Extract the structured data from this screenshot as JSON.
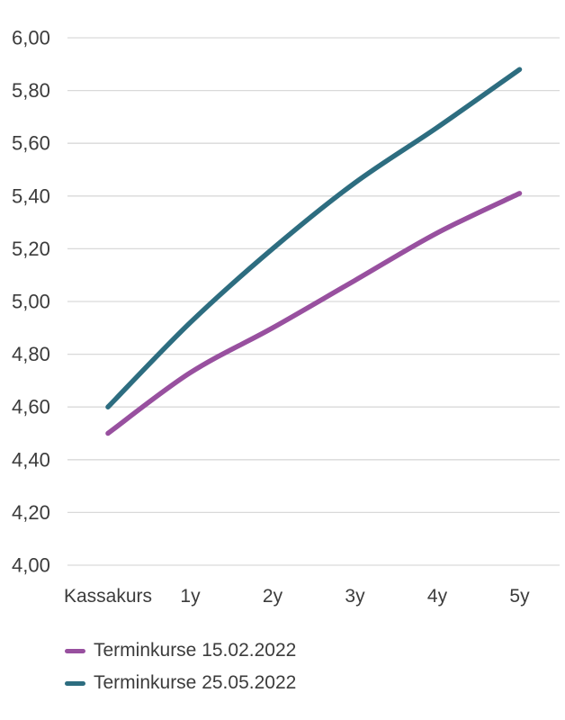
{
  "chart_data": {
    "type": "line",
    "categories": [
      "Kassakurs",
      "1y",
      "2y",
      "3y",
      "4y",
      "5y"
    ],
    "series": [
      {
        "name": "Terminkurse 15.02.2022",
        "color": "#98509f",
        "values": [
          4.5,
          4.73,
          4.9,
          5.08,
          5.26,
          5.41
        ]
      },
      {
        "name": "Terminkurse 25.05.2022",
        "color": "#2d6d80",
        "values": [
          4.6,
          4.92,
          5.2,
          5.45,
          5.66,
          5.88
        ]
      }
    ],
    "title": "",
    "xlabel": "",
    "ylabel": "",
    "ylim": [
      4.0,
      6.0
    ],
    "y_tick_step": 0.2,
    "y_tick_labels": [
      "6,00",
      "5,80",
      "5,60",
      "5,40",
      "5,20",
      "5,00",
      "4,80",
      "4,60",
      "4,40",
      "4,20",
      "4,00"
    ],
    "grid": "horizontal",
    "legend_position": "bottom-left",
    "colors": {
      "grid": "#d9d9d9",
      "text": "#3c3c3c",
      "background": "#ffffff"
    }
  }
}
